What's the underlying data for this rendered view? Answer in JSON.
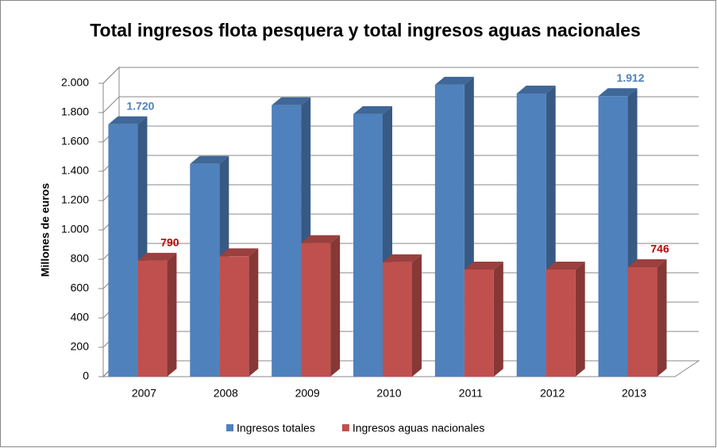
{
  "chart_data": {
    "type": "bar3d",
    "title": "Total ingresos flota pesquera y total ingresos aguas nacionales",
    "y_label": "Millones de euros",
    "categories": [
      "2007",
      "2008",
      "2009",
      "2010",
      "2011",
      "2012",
      "2013"
    ],
    "series": [
      {
        "name": "Ingresos totales",
        "color": "#4f81bd",
        "label_color": "#4f81bd",
        "values": [
          1720,
          1450,
          1850,
          1790,
          1990,
          1930,
          1912
        ],
        "value_labels": [
          "1.720",
          null,
          null,
          null,
          null,
          null,
          "1.912"
        ]
      },
      {
        "name": "Ingresos aguas nacionales",
        "color": "#c0504d",
        "label_color": "#c00000",
        "values": [
          790,
          820,
          910,
          780,
          730,
          730,
          746
        ],
        "value_labels": [
          "790",
          null,
          null,
          null,
          null,
          null,
          "746"
        ]
      }
    ],
    "ylim": [
      0,
      2000
    ],
    "yticks": [
      0,
      200,
      400,
      600,
      800,
      {
        "value": 1000,
        "label": "1.000"
      },
      {
        "value": 1200,
        "label": "1.200"
      },
      {
        "value": 1400,
        "label": "1.400"
      },
      {
        "value": 1600,
        "label": "1.600"
      },
      {
        "value": 1800,
        "label": "1.800"
      },
      {
        "value": 2000,
        "label": "2.000"
      }
    ],
    "grid": true,
    "legend": "bottom"
  }
}
